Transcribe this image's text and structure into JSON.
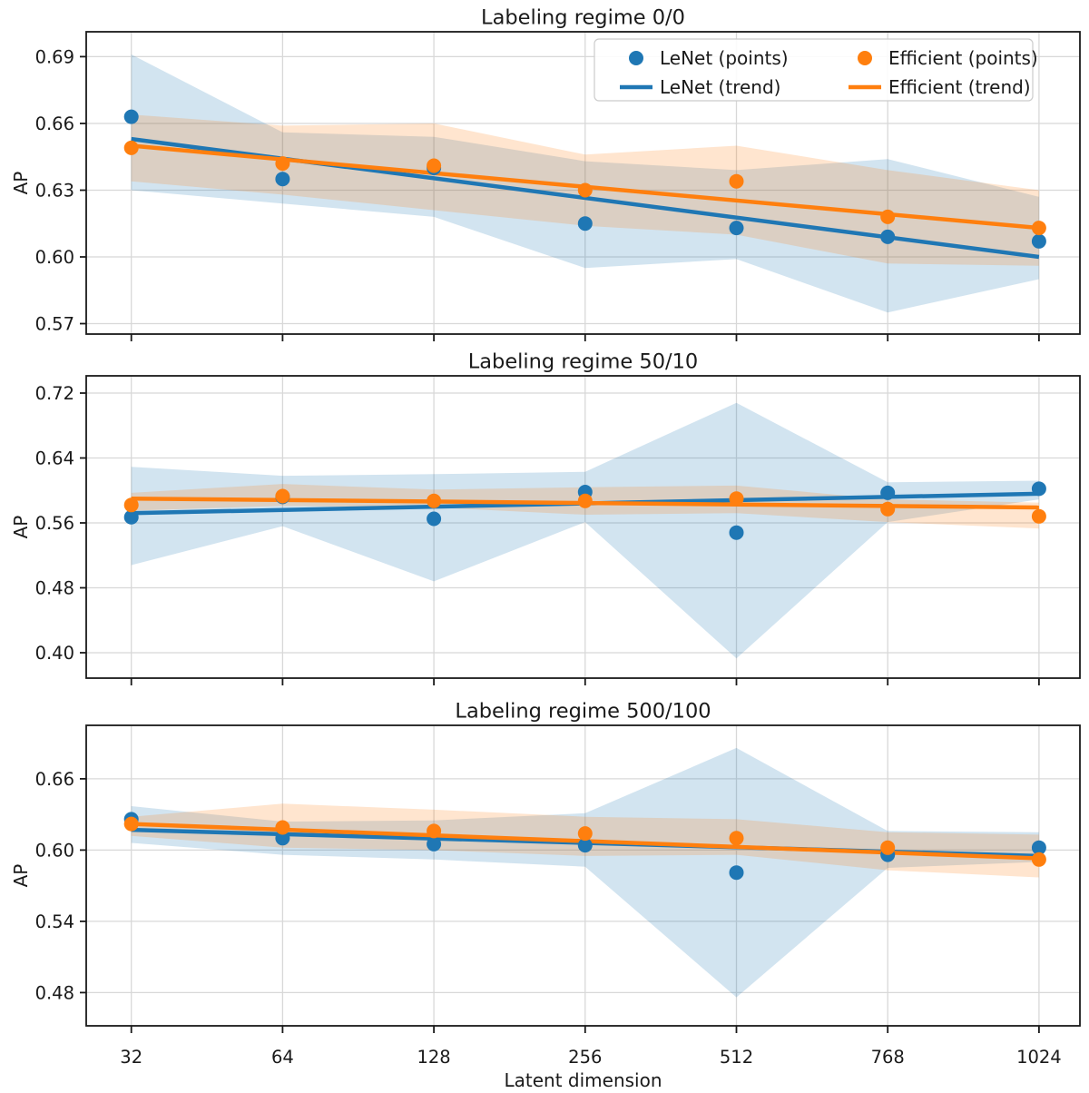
{
  "figure": {
    "background": "#ffffff"
  },
  "chart_data": {
    "type": "scatter",
    "layout": "3 stacked subplots, shared x axis, light grey grid on, legend upper right of first panel in 2 columns",
    "x_categories": [
      "32",
      "64",
      "128",
      "256",
      "512",
      "768",
      "1024"
    ],
    "xlabel": "Latent dimension",
    "ylabel": "AP",
    "grid": true,
    "colors": {
      "lenet": "#1f77b4",
      "efficient": "#ff7f0e",
      "band_opacity": 0.2,
      "grid": "#d8d8d8",
      "spine": "#1a1a1a",
      "legend_border": "#cccccc"
    },
    "legend": {
      "entries": [
        "LeNet (points)",
        "LeNet (trend)",
        "Efficient (points)",
        "Efficient (trend)"
      ]
    },
    "panels": [
      {
        "title": "Labeling regime 0/0",
        "ylabel": "AP",
        "yticks": [
          0.57,
          0.6,
          0.63,
          0.66,
          0.69
        ],
        "ytick_labels": [
          "0.57",
          "0.60",
          "0.63",
          "0.66",
          "0.69"
        ],
        "ylim": [
          0.5653,
          0.7012
        ],
        "series": [
          {
            "name": "LeNet",
            "color": "#1f77b4",
            "points": [
              0.663,
              0.635,
              0.64,
              0.615,
              0.613,
              0.609,
              0.607
            ],
            "trend_endpoints": [
              0.653,
              0.6
            ],
            "band_upper": [
              0.691,
              0.656,
              0.654,
              0.643,
              0.639,
              0.644,
              0.627
            ],
            "band_lower": [
              0.63,
              0.624,
              0.618,
              0.595,
              0.599,
              0.575,
              0.59
            ]
          },
          {
            "name": "Efficient",
            "color": "#ff7f0e",
            "points": [
              0.649,
              0.642,
              0.641,
              0.63,
              0.634,
              0.618,
              0.613
            ],
            "trend_endpoints": [
              0.65,
              0.613
            ],
            "band_upper": [
              0.664,
              0.659,
              0.66,
              0.646,
              0.65,
              0.639,
              0.63
            ],
            "band_lower": [
              0.634,
              0.628,
              0.621,
              0.614,
              0.61,
              0.597,
              0.596
            ]
          }
        ]
      },
      {
        "title": "Labeling regime 50/10",
        "ylabel": "AP",
        "yticks": [
          0.4,
          0.48,
          0.56,
          0.64,
          0.72
        ],
        "ytick_labels": [
          "0.40",
          "0.48",
          "0.56",
          "0.64",
          "0.72"
        ],
        "ylim": [
          0.3687,
          0.7412
        ],
        "series": [
          {
            "name": "LeNet",
            "color": "#1f77b4",
            "points": [
              0.567,
              0.592,
              0.565,
              0.598,
              0.548,
              0.597,
              0.602
            ],
            "trend_endpoints": [
              0.572,
              0.596
            ],
            "band_upper": [
              0.629,
              0.618,
              0.62,
              0.623,
              0.708,
              0.61,
              0.612
            ],
            "band_lower": [
              0.508,
              0.556,
              0.488,
              0.561,
              0.393,
              0.561,
              0.589
            ]
          },
          {
            "name": "Efficient",
            "color": "#ff7f0e",
            "points": [
              0.582,
              0.593,
              0.587,
              0.587,
              0.59,
              0.577,
              0.568
            ],
            "trend_endpoints": [
              0.59,
              0.579
            ],
            "band_upper": [
              0.597,
              0.608,
              0.601,
              0.604,
              0.606,
              0.589,
              0.585
            ],
            "band_lower": [
              0.575,
              0.581,
              0.579,
              0.57,
              0.572,
              0.561,
              0.553
            ]
          }
        ]
      },
      {
        "title": "Labeling regime 500/100",
        "ylabel": "AP",
        "yticks": [
          0.48,
          0.54,
          0.6,
          0.66
        ],
        "ytick_labels": [
          "0.48",
          "0.54",
          "0.60",
          "0.66"
        ],
        "ylim": [
          0.452,
          0.705
        ],
        "series": [
          {
            "name": "LeNet",
            "color": "#1f77b4",
            "points": [
              0.626,
              0.61,
              0.605,
              0.604,
              0.581,
              0.596,
              0.602
            ],
            "trend_endpoints": [
              0.617,
              0.595
            ],
            "band_upper": [
              0.637,
              0.624,
              0.625,
              0.631,
              0.686,
              0.616,
              0.615
            ],
            "band_lower": [
              0.606,
              0.596,
              0.592,
              0.586,
              0.476,
              0.585,
              0.59
            ]
          },
          {
            "name": "Efficient",
            "color": "#ff7f0e",
            "points": [
              0.622,
              0.619,
              0.616,
              0.614,
              0.61,
              0.602,
              0.592
            ],
            "trend_endpoints": [
              0.622,
              0.593
            ],
            "band_upper": [
              0.628,
              0.639,
              0.634,
              0.628,
              0.626,
              0.615,
              0.613
            ],
            "band_lower": [
              0.612,
              0.602,
              0.6,
              0.595,
              0.596,
              0.583,
              0.577
            ]
          }
        ]
      }
    ]
  }
}
